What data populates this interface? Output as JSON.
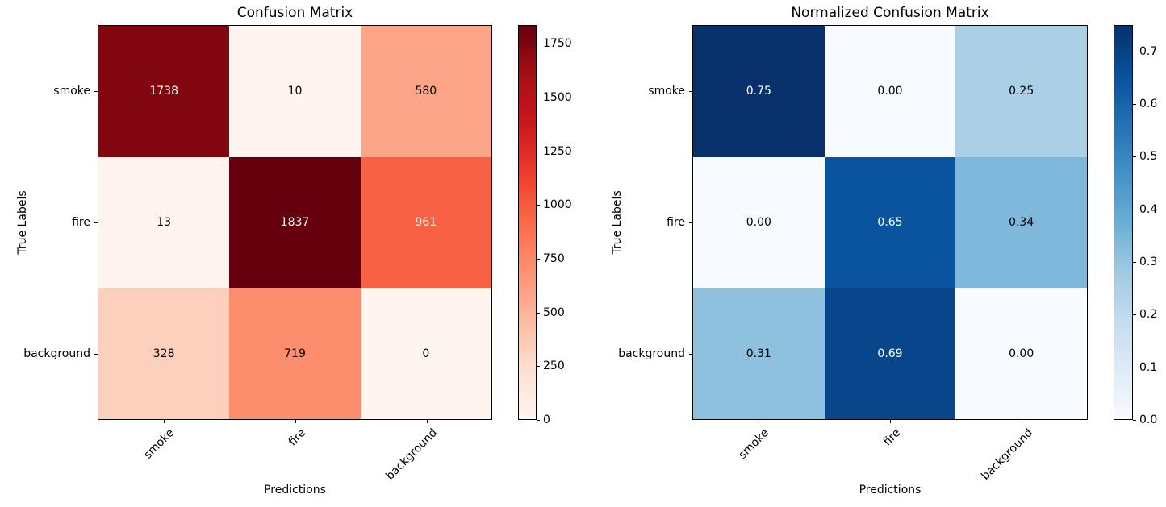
{
  "figure": {
    "background": "#ffffff"
  },
  "chart_data": [
    {
      "type": "heatmap",
      "title": "Confusion Matrix",
      "xlabel": "Predictions",
      "ylabel": "True Labels",
      "x_categories": [
        "smoke",
        "fire",
        "background"
      ],
      "y_categories": [
        "smoke",
        "fire",
        "background"
      ],
      "values": [
        [
          1738,
          10,
          580
        ],
        [
          13,
          1837,
          961
        ],
        [
          328,
          719,
          0
        ]
      ],
      "values_display": [
        [
          "1738",
          "10",
          "580"
        ],
        [
          "13",
          "1837",
          "961"
        ],
        [
          "328",
          "719",
          "0"
        ]
      ],
      "vmin": 0,
      "vmax": 1837,
      "colormap": "Reds",
      "cell_colors": [
        [
          "#820610",
          "#fff4ef",
          "#fca588"
        ],
        [
          "#fff4ef",
          "#67000d",
          "#f96144"
        ],
        [
          "#fdd0bd",
          "#fc8d6d",
          "#fff5f0"
        ]
      ],
      "cell_text_colors": [
        [
          "#ffffff",
          "#000000",
          "#000000"
        ],
        [
          "#000000",
          "#ffffff",
          "#ffffff"
        ],
        [
          "#000000",
          "#000000",
          "#000000"
        ]
      ],
      "colorbar": {
        "tick_labels": [
          "0",
          "250",
          "500",
          "750",
          "1000",
          "1250",
          "1500",
          "1750"
        ],
        "tick_values": [
          0,
          250,
          500,
          750,
          1000,
          1250,
          1500,
          1750
        ],
        "gradient_stops": [
          "#fff5f0",
          "#fee0d2",
          "#fcbba1",
          "#fc9272",
          "#fb6a4a",
          "#ef3b2c",
          "#cb181d",
          "#a50f15",
          "#67000d"
        ]
      }
    },
    {
      "type": "heatmap",
      "title": "Normalized Confusion Matrix",
      "xlabel": "Predictions",
      "ylabel": "True Labels",
      "x_categories": [
        "smoke",
        "fire",
        "background"
      ],
      "y_categories": [
        "smoke",
        "fire",
        "background"
      ],
      "values": [
        [
          0.75,
          0.0,
          0.25
        ],
        [
          0.0,
          0.65,
          0.34
        ],
        [
          0.31,
          0.69,
          0.0
        ]
      ],
      "values_display": [
        [
          "0.75",
          "0.00",
          "0.25"
        ],
        [
          "0.00",
          "0.65",
          "0.34"
        ],
        [
          "0.31",
          "0.69",
          "0.00"
        ]
      ],
      "vmin": 0,
      "vmax": 0.75,
      "colormap": "Blues",
      "cell_colors": [
        [
          "#08306b",
          "#f7fbff",
          "#abd0e6"
        ],
        [
          "#f7fbff",
          "#0a539e",
          "#7eb8da"
        ],
        [
          "#8ec1de",
          "#08458a",
          "#f7fbff"
        ]
      ],
      "cell_text_colors": [
        [
          "#ffffff",
          "#000000",
          "#000000"
        ],
        [
          "#000000",
          "#ffffff",
          "#000000"
        ],
        [
          "#000000",
          "#ffffff",
          "#000000"
        ]
      ],
      "colorbar": {
        "tick_labels": [
          "0.0",
          "0.1",
          "0.2",
          "0.3",
          "0.4",
          "0.5",
          "0.6",
          "0.7"
        ],
        "tick_values": [
          0.0,
          0.1,
          0.2,
          0.3,
          0.4,
          0.5,
          0.6,
          0.7
        ],
        "gradient_stops": [
          "#f7fbff",
          "#deebf7",
          "#c6dbef",
          "#9ecae1",
          "#6baed6",
          "#4292c6",
          "#2171b5",
          "#08519c",
          "#08306b"
        ]
      }
    }
  ]
}
